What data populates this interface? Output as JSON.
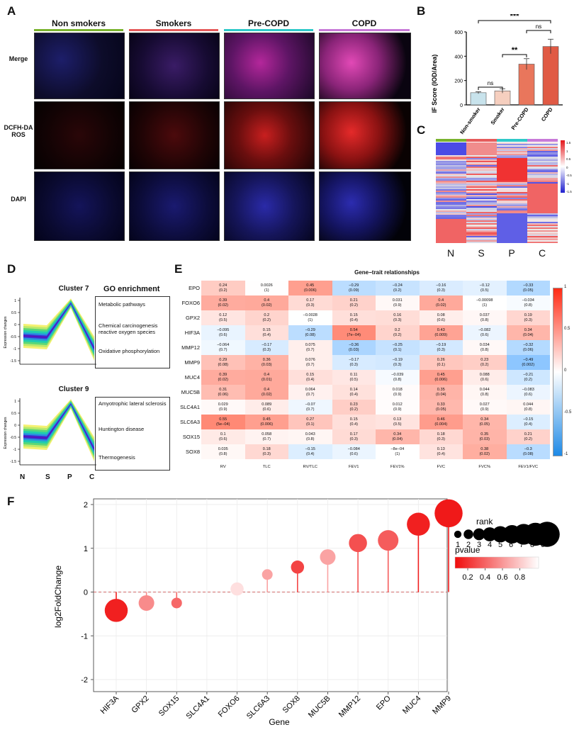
{
  "panelA": {
    "letter": "A",
    "columns": [
      {
        "label": "Non smokers",
        "color": "#7ab32e"
      },
      {
        "label": "Smokers",
        "color": "#e55b5b"
      },
      {
        "label": "Pre-COPD",
        "color": "#2fc9c9"
      },
      {
        "label": "COPD",
        "color": "#c87ad8"
      }
    ],
    "rows": [
      "Merge",
      "DCFH-DA ROS",
      "DAPI"
    ]
  },
  "panelB": {
    "letter": "B",
    "chart_data": {
      "type": "bar",
      "categories": [
        "Non-smoker",
        "Smoker",
        "Pre-COPD",
        "COPD"
      ],
      "values": [
        100,
        115,
        335,
        480
      ],
      "errors": [
        8,
        18,
        45,
        60
      ],
      "colors": [
        "#c8e3ec",
        "#f6cfbf",
        "#e9765c",
        "#e05a44"
      ],
      "ylabel": "IF Score (IOD/Area)",
      "ylim": [
        0,
        600
      ],
      "yticks": [
        "0",
        "200",
        "400",
        "600"
      ],
      "significance": [
        {
          "label": "ns",
          "from": 0,
          "to": 1
        },
        {
          "label": "**",
          "from": 1,
          "to": 2
        },
        {
          "label": "ns",
          "from": 2,
          "to": 3
        },
        {
          "label": "***",
          "from": 0,
          "to": 3
        }
      ]
    }
  },
  "panelC": {
    "letter": "C",
    "xlabels": [
      "N",
      "S",
      "P",
      "C"
    ],
    "group_colors": [
      "#7ab32e",
      "#e55b5b",
      "#2fc9c9",
      "#c87ad8"
    ],
    "scale_ticks": [
      "1.5",
      "1",
      "0.5",
      "0",
      "-0.5",
      "-1",
      "-1.5"
    ]
  },
  "panelD": {
    "letter": "D",
    "go_title": "GO enrichment",
    "ylabel": "Expression changes",
    "xlabels": [
      "N",
      "S",
      "P",
      "C"
    ],
    "clusters": [
      {
        "title": "Cluster 7",
        "terms": [
          "Metabolic pathways",
          "Chemical carcinogenesis reactive oxygen species",
          "Oxidative phosphorylation"
        ]
      },
      {
        "title": "Cluster 9",
        "terms": [
          "Amyotrophic lateral sclerosis",
          "Huntington disease",
          "Thermogenesis"
        ]
      }
    ]
  },
  "panelE": {
    "letter": "E",
    "title": "Gene−trait relationships",
    "genes": [
      "EPO",
      "FOXO6",
      "GPX2",
      "HIF3A",
      "MMP12",
      "MMP9",
      "MUC4",
      "MUC5B",
      "SLC4A1",
      "SLC6A3",
      "SOX15",
      "SOX8"
    ],
    "traits": [
      "RV",
      "TLC",
      "RV/TLC",
      "FEV1",
      "FEV1%",
      "FVC",
      "FVC%",
      "FEV1/FVC"
    ],
    "r": [
      [
        "0.24",
        "0.0026",
        "0.45",
        "−0.29",
        "−0.24",
        "−0.16",
        "−0.12",
        "−0.33"
      ],
      [
        "0.39",
        "0.4",
        "0.17",
        "0.21",
        "0.031",
        "0.4",
        "−0.00098",
        "−0.034"
      ],
      [
        "0.12",
        "0.2",
        "−0.0028",
        "0.15",
        "0.16",
        "0.08",
        "0.037",
        "0.19"
      ],
      [
        "−0.095",
        "0.15",
        "−0.29",
        "0.54",
        "0.2",
        "0.43",
        "−0.082",
        "0.34"
      ],
      [
        "−0.064",
        "−0.17",
        "0.075",
        "−0.36",
        "−0.25",
        "−0.19",
        "0.034",
        "−0.32"
      ],
      [
        "0.29",
        "0.36",
        "0.076",
        "−0.17",
        "−0.19",
        "0.26",
        "0.23",
        "−0.49"
      ],
      [
        "0.39",
        "0.4",
        "0.15",
        "0.11",
        "−0.039",
        "0.45",
        "0.088",
        "−0.21"
      ],
      [
        "0.31",
        "0.4",
        "0.064",
        "0.14",
        "0.018",
        "0.35",
        "0.044",
        "−0.083"
      ],
      [
        "0.029",
        "0.089",
        "−0.07",
        "0.23",
        "0.012",
        "0.33",
        "0.027",
        "0.044"
      ],
      [
        "0.55",
        "0.45",
        "0.27",
        "0.15",
        "0.13",
        "0.46",
        "0.34",
        "−0.15"
      ],
      [
        "0.1",
        "0.058",
        "0.043",
        "0.17",
        "0.34",
        "0.18",
        "0.35",
        "0.21"
      ],
      [
        "0.035",
        "0.18",
        "−0.15",
        "−0.084",
        "−8e−04",
        "0.13",
        "0.38",
        "−0.3"
      ]
    ],
    "p": [
      [
        "(0.2)",
        "(1)",
        "(0.006)",
        "(0.09)",
        "(0.2)",
        "(0.3)",
        "(0.5)",
        "(0.05)"
      ],
      [
        "(0.02)",
        "(0.02)",
        "(0.3)",
        "(0.2)",
        "(0.9)",
        "(0.02)",
        "(1)",
        "(0.8)"
      ],
      [
        "(0.5)",
        "(0.2)",
        "(1)",
        "(0.4)",
        "(0.3)",
        "(0.6)",
        "(0.8)",
        "(0.3)"
      ],
      [
        "(0.6)",
        "(0.4)",
        "(0.08)",
        "(7e−04)",
        "(0.2)",
        "(0.009)",
        "(0.6)",
        "(0.04)"
      ],
      [
        "(0.7)",
        "(0.3)",
        "(0.7)",
        "(0.03)",
        "(0.1)",
        "(0.3)",
        "(0.8)",
        "(0.06)"
      ],
      [
        "(0.08)",
        "(0.03)",
        "(0.7)",
        "(0.3)",
        "(0.3)",
        "(0.1)",
        "(0.2)",
        "(0.002)"
      ],
      [
        "(0.02)",
        "(0.01)",
        "(0.4)",
        "(0.5)",
        "(0.8)",
        "(0.006)",
        "(0.6)",
        "(0.2)"
      ],
      [
        "(0.06)",
        "(0.02)",
        "(0.7)",
        "(0.4)",
        "(0.9)",
        "(0.04)",
        "(0.8)",
        "(0.6)"
      ],
      [
        "(0.9)",
        "(0.6)",
        "(0.7)",
        "(0.2)",
        "(0.9)",
        "(0.05)",
        "(0.9)",
        "(0.8)"
      ],
      [
        "(5e−04)",
        "(0.006)",
        "(0.1)",
        "(0.4)",
        "(0.5)",
        "(0.004)",
        "(0.05)",
        "(0.4)"
      ],
      [
        "(0.6)",
        "(0.7)",
        "(0.8)",
        "(0.3)",
        "(0.04)",
        "(0.3)",
        "(0.03)",
        "(0.2)"
      ],
      [
        "(0.8)",
        "(0.3)",
        "(0.4)",
        "(0.6)",
        "(1)",
        "(0.4)",
        "(0.02)",
        "(0.08)"
      ]
    ],
    "scale_ticks": [
      "1",
      "0.5",
      "0",
      "-0.5",
      "-1"
    ]
  },
  "panelF": {
    "letter": "F",
    "chart_data": {
      "type": "scatter",
      "categories": [
        "HIF3A",
        "GPX2",
        "SOX15",
        "SLC4A1",
        "FOXO6",
        "SLC6A3",
        "SOX8",
        "MUC5B",
        "MMP12",
        "EPO",
        "MUC4",
        "MMP9"
      ],
      "values": [
        -0.42,
        -0.25,
        -0.25,
        null,
        0.07,
        0.4,
        0.57,
        0.8,
        1.12,
        1.18,
        1.55,
        1.8
      ],
      "rank": [
        7,
        4,
        2,
        null,
        3,
        2,
        3,
        4,
        5,
        6,
        7,
        9
      ],
      "pvalue": [
        0.05,
        0.5,
        0.35,
        null,
        0.85,
        0.6,
        0.2,
        0.6,
        0.25,
        0.3,
        0.05,
        0.02
      ],
      "xlabel": "Gene",
      "ylabel": "log2FoldChange",
      "ylim": [
        -2,
        2
      ],
      "yticks": [
        "-2",
        "-1",
        "0",
        "1",
        "2"
      ],
      "legend_rank_title": "rank",
      "legend_rank_values": [
        "1",
        "2",
        "3",
        "4",
        "5",
        "6",
        "7",
        "8",
        "9"
      ],
      "legend_pvalue_title": "pvalue",
      "legend_pvalue_ticks": [
        "0.2",
        "0.4",
        "0.6",
        "0.8"
      ]
    }
  }
}
